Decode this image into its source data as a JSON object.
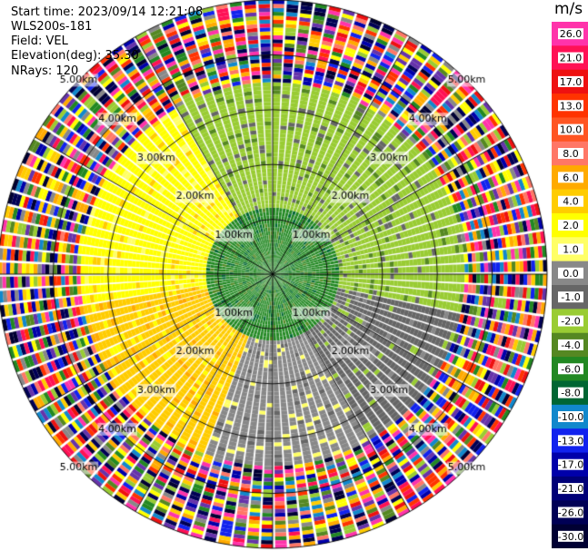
{
  "info": {
    "start_time": "Start time: 2023/09/14 12:21:08",
    "instrument": "WLS200s-181",
    "field": "Field: VEL",
    "elevation": "Elevation(deg): 35.30",
    "nrays": "NRays: 120"
  },
  "colorbar": {
    "unit": "m/s",
    "ticks": [
      "26.0",
      "21.0",
      "17.0",
      "13.0",
      "10.0",
      "8.0",
      "6.0",
      "4.0",
      "2.0",
      "1.0",
      "0.0",
      "-1.0",
      "-2.0",
      "-4.0",
      "-6.0",
      "-8.0",
      "-10.0",
      "-13.0",
      "-17.0",
      "-21.0",
      "-26.0",
      "-30.0"
    ],
    "colors": [
      "#ff33aa",
      "#ff1155",
      "#ee1111",
      "#ff3300",
      "#ff5522",
      "#ff7766",
      "#ffaa00",
      "#ffcc00",
      "#ffff00",
      "#ffff66",
      "#888888",
      "#666666",
      "#99cc33",
      "#558822",
      "#228822",
      "#006633",
      "#1188cc",
      "#1122ee",
      "#0000aa",
      "#000077",
      "#000055",
      "#000033"
    ]
  },
  "range_labels": [
    "1.00km",
    "2.00km",
    "3.00km",
    "4.00km",
    "5.00km"
  ],
  "chart_data": {
    "type": "heatmap",
    "projection": "polar PPI",
    "field": "VEL",
    "units": "m/s",
    "nrays": 120,
    "elevation_deg": 35.3,
    "range_rings_km": [
      1,
      2,
      3,
      4,
      5
    ],
    "max_range_km": 5,
    "colorbar_range": [
      -30,
      26
    ],
    "summary": "near-field velocities between -8 and +8 m/s; beyond ~3.5 km the field is noise",
    "sector_pattern": [
      {
        "range_km": [
          0,
          1.2
        ],
        "azimuth_deg": [
          0,
          360
        ],
        "velocity_mps": -6.0
      },
      {
        "range_km": [
          1.2,
          3.5
        ],
        "azimuth_deg": [
          330,
          100
        ],
        "velocity_mps": -2.0
      },
      {
        "range_km": [
          1.2,
          3.5
        ],
        "azimuth_deg": [
          100,
          150
        ],
        "velocity_mps": -1.0
      },
      {
        "range_km": [
          1.2,
          3.5
        ],
        "azimuth_deg": [
          150,
          200
        ],
        "velocity_mps": 0.0
      },
      {
        "range_km": [
          1.2,
          3.5
        ],
        "azimuth_deg": [
          200,
          260
        ],
        "velocity_mps": 4.0
      },
      {
        "range_km": [
          1.2,
          3.5
        ],
        "azimuth_deg": [
          260,
          330
        ],
        "velocity_mps": 2.0
      },
      {
        "range_km": [
          3.5,
          5.0
        ],
        "azimuth_deg": [
          0,
          360
        ],
        "velocity_mps": "noise"
      }
    ]
  }
}
